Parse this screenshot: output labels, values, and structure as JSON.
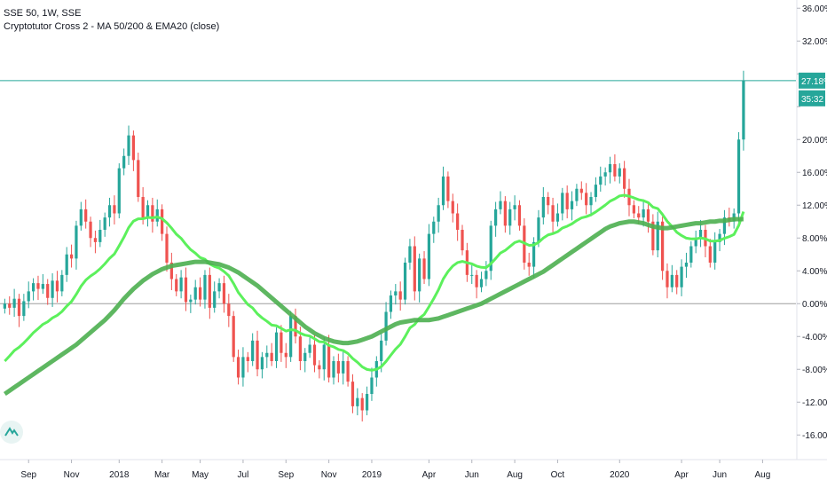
{
  "legend": {
    "symbol_line": "SSE 50, 1W, SSE",
    "indicator_line": "Cryptotutor Cross 2 - MA 50/200 & EMA20 (close)"
  },
  "price_label": {
    "value": "27.18%",
    "color": "#26a69a"
  },
  "countdown_label": {
    "value": "35:32",
    "color": "#26a69a"
  },
  "logo": {
    "icon": "tradingview-logo-icon"
  },
  "colors": {
    "up": "#26a69a",
    "down": "#ef5350",
    "ema20": "#5cf05c",
    "ma200": "#4caf50",
    "zero_line": "#9e9e9e",
    "last_price_line": "#26a69a",
    "axis_text": "#131722"
  },
  "chart_data": {
    "type": "candlestick",
    "title": "SSE 50, 1W, SSE",
    "subtitle": "Cryptotutor Cross 2 - MA 50/200 & EMA20 (close)",
    "y_unit": "percent change",
    "ylim": [
      -19,
      37
    ],
    "y_ticks": [
      36,
      32,
      28,
      24,
      20,
      16,
      12,
      8,
      4,
      0,
      -4,
      -8,
      -12,
      -16
    ],
    "y_tick_labels": [
      "36.00%",
      "32.00%",
      "",
      "",
      "20.00%",
      "16.00%",
      "12.00%",
      "8.00%",
      "4.00%",
      "0.00%",
      "-4.00%",
      "-8.00%",
      "-12.00%",
      "-16.00%"
    ],
    "x_tick_labels": [
      {
        "label": "Sep",
        "week": 5
      },
      {
        "label": "Nov",
        "week": 14
      },
      {
        "label": "2018",
        "week": 24
      },
      {
        "label": "Mar",
        "week": 33
      },
      {
        "label": "May",
        "week": 41
      },
      {
        "label": "Jul",
        "week": 50
      },
      {
        "label": "Sep",
        "week": 59
      },
      {
        "label": "Nov",
        "week": 68
      },
      {
        "label": "2019",
        "week": 77
      },
      {
        "label": "Apr",
        "week": 89
      },
      {
        "label": "Jun",
        "week": 98
      },
      {
        "label": "Aug",
        "week": 107
      },
      {
        "label": "Oct",
        "week": 116
      },
      {
        "label": "2020",
        "week": 129
      },
      {
        "label": "Apr",
        "week": 142
      },
      {
        "label": "Jun",
        "week": 150
      },
      {
        "label": "Aug",
        "week": 159
      }
    ],
    "x_range_weeks": [
      -1,
      166
    ],
    "last_price": 27.18,
    "zero_line": 0,
    "grid": false,
    "candles_close": [
      0.0,
      -0.5,
      0.6,
      -1.5,
      0.3,
      1.5,
      2.5,
      1.8,
      2.4,
      0.7,
      2.8,
      1.5,
      3.5,
      6.0,
      5.5,
      9.5,
      11.5,
      10.0,
      8.0,
      7.5,
      9.0,
      10.5,
      12.0,
      11.0,
      16.5,
      18.0,
      20.5,
      17.5,
      13.0,
      10.5,
      12.0,
      10.0,
      11.5,
      8.5,
      5.0,
      3.0,
      1.5,
      3.2,
      0.2,
      0.5,
      2.0,
      0.5,
      3.5,
      -0.5,
      1.5,
      2.5,
      0.0,
      -1.5,
      -6.5,
      -9.0,
      -6.5,
      -7.0,
      -4.5,
      -8.0,
      -6.5,
      -6.0,
      -7.0,
      -3.5,
      -6.0,
      -6.5,
      -1.5,
      -4.0,
      -7.0,
      -6.0,
      -5.0,
      -7.5,
      -8.0,
      -5.0,
      -9.0,
      -7.0,
      -8.5,
      -7.0,
      -9.5,
      -12.5,
      -11.5,
      -13.0,
      -11.0,
      -9.0,
      -7.0,
      -4.5,
      -1.0,
      1.0,
      1.5,
      0.5,
      5.0,
      7.0,
      1.5,
      5.5,
      3.0,
      8.5,
      10.0,
      12.0,
      15.5,
      12.5,
      11.0,
      9.0,
      6.5,
      3.5,
      3.5,
      2.0,
      3.0,
      4.0,
      9.5,
      11.5,
      12.5,
      9.5,
      11.5,
      12.0,
      9.5,
      5.0,
      4.5,
      7.5,
      10.5,
      13.0,
      12.0,
      10.0,
      11.0,
      13.5,
      11.5,
      12.5,
      14.0,
      13.5,
      12.0,
      13.0,
      14.5,
      15.5,
      16.0,
      17.0,
      15.5,
      16.5,
      14.0,
      12.0,
      11.0,
      10.5,
      11.5,
      10.0,
      6.5,
      10.0,
      4.0,
      2.0,
      3.5,
      2.0,
      4.5,
      5.0,
      7.0,
      8.0,
      9.0,
      7.0,
      5.0,
      7.5,
      8.5,
      10.5,
      10.0,
      11.0,
      20.0,
      27.18
    ],
    "ma200": [
      -11.0,
      -10.6,
      -10.2,
      -9.8,
      -9.4,
      -9.0,
      -8.6,
      -8.2,
      -7.8,
      -7.4,
      -7.0,
      -6.6,
      -6.2,
      -5.8,
      -5.4,
      -5.0,
      -4.5,
      -4.0,
      -3.5,
      -3.0,
      -2.5,
      -2.0,
      -1.4,
      -0.8,
      -0.1,
      0.6,
      1.2,
      1.8,
      2.3,
      2.8,
      3.2,
      3.6,
      3.9,
      4.2,
      4.4,
      4.6,
      4.7,
      4.8,
      4.9,
      5.0,
      5.1,
      5.1,
      5.1,
      5.0,
      4.9,
      4.8,
      4.6,
      4.4,
      4.1,
      3.8,
      3.4,
      3.0,
      2.6,
      2.2,
      1.7,
      1.2,
      0.7,
      0.2,
      -0.3,
      -0.8,
      -1.3,
      -1.8,
      -2.3,
      -2.8,
      -3.2,
      -3.6,
      -3.9,
      -4.2,
      -4.4,
      -4.6,
      -4.7,
      -4.8,
      -4.8,
      -4.7,
      -4.6,
      -4.4,
      -4.2,
      -4.0,
      -3.7,
      -3.4,
      -3.1,
      -2.8,
      -2.5,
      -2.3,
      -2.2,
      -2.1,
      -2.0,
      -2.0,
      -2.0,
      -2.0,
      -1.9,
      -1.8,
      -1.6,
      -1.4,
      -1.2,
      -1.0,
      -0.8,
      -0.6,
      -0.4,
      -0.2,
      0.0,
      0.3,
      0.6,
      0.9,
      1.2,
      1.5,
      1.8,
      2.1,
      2.4,
      2.7,
      3.0,
      3.3,
      3.6,
      3.9,
      4.3,
      4.7,
      5.1,
      5.5,
      5.9,
      6.3,
      6.7,
      7.1,
      7.5,
      7.9,
      8.3,
      8.7,
      9.1,
      9.4,
      9.6,
      9.8,
      9.9,
      10.0,
      10.0,
      9.9,
      9.8,
      9.6,
      9.4,
      9.3,
      9.2,
      9.2,
      9.3,
      9.4,
      9.5,
      9.6,
      9.7,
      9.8,
      9.8,
      9.9,
      10.0,
      10.0,
      10.1,
      10.1,
      10.2,
      10.3,
      10.3,
      10.3
    ],
    "ema20_start_week": 0,
    "ema20_note_series": "EMA20 computed from closes",
    "legend_entries": []
  }
}
